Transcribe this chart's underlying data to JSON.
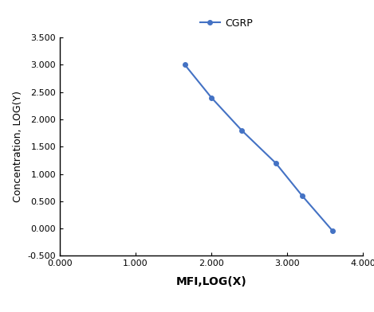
{
  "x": [
    1.65,
    2.0,
    2.4,
    2.85,
    3.2,
    3.6
  ],
  "y": [
    3.0,
    2.4,
    1.8,
    1.2,
    0.6,
    -0.04
  ],
  "line_color": "#4472C4",
  "marker": "o",
  "marker_size": 4,
  "line_width": 1.5,
  "legend_label": "CGRP",
  "xlabel": "MFI,LOG(X)",
  "ylabel": "Concentration, LOG(Y)",
  "xlim": [
    0.0,
    4.0
  ],
  "ylim": [
    -0.5,
    3.5
  ],
  "xticks": [
    0.0,
    1.0,
    2.0,
    3.0,
    4.0
  ],
  "yticks": [
    -0.5,
    0.0,
    0.5,
    1.0,
    1.5,
    2.0,
    2.5,
    3.0,
    3.5
  ],
  "xlabel_fontsize": 10,
  "ylabel_fontsize": 9,
  "tick_fontsize": 8,
  "legend_fontsize": 9,
  "background_color": "#ffffff"
}
